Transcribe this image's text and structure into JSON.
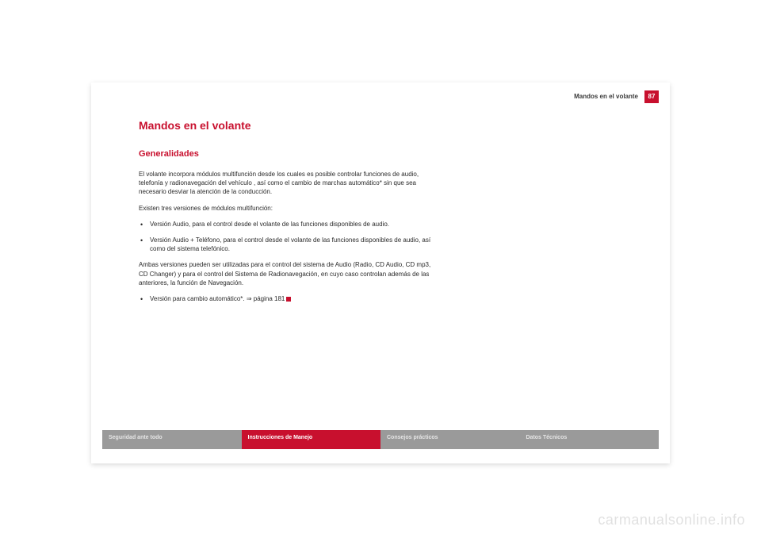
{
  "header": {
    "section_title": "Mandos en el volante",
    "page_number": "87"
  },
  "content": {
    "title": "Mandos en el volante",
    "subtitle": "Generalidades",
    "para1": "El volante incorpora módulos multifunción desde los cuales es posible controlar funciones de audio, telefonía y radionavegación del vehículo , así como el cambio de marchas automático* sin que sea necesario desviar la atención de la conducción.",
    "para2": "Existen tres versiones de módulos multifunción:",
    "bullet1": "Versión Audio, para el control desde el volante de las funciones disponibles de audio.",
    "bullet2": "Versión Audio + Teléfono, para el control desde el volante de las funciones disponibles de audio, así como del sistema telefónico.",
    "para3": "Ambas versiones pueden ser utilizadas para el control del sistema de Audio (Radio, CD Audio, CD mp3, CD Changer) y para el control del Sistema de Radionavegación, en cuyo caso controlan además de las anteriores, la función de Navegación.",
    "bullet3": "Versión para cambio automático*. ⇒ página 181"
  },
  "footer": {
    "tabs": [
      "Seguridad ante todo",
      "Instrucciones de Manejo",
      "Consejos prácticos",
      "Datos Técnicos"
    ]
  },
  "watermark": "carmanualsonline.info",
  "colors": {
    "accent": "#c8102e",
    "tab_grey": "#9a9a9a"
  }
}
